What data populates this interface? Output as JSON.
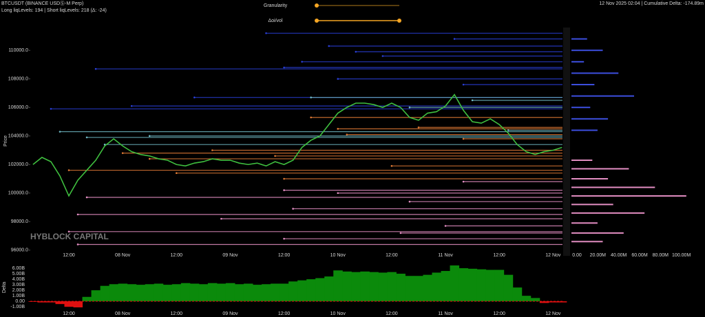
{
  "header": {
    "symbol": "BTCUSDT (BINANCE USDⓈ-M Perp)",
    "levels_info": "Long liqLevels: 194 | Short liqLevels: 218 (Δ: -24)",
    "status": "12 Nov 2025 02:04 | Cumulative Delta: -174.89m",
    "controls": [
      "Granularity",
      "Δoi/vol"
    ],
    "watermark": "HYBLOCK CAPITAL"
  },
  "chart_data": [
    {
      "type": "line",
      "y_label": "Price",
      "color": "#3fbf3f",
      "x": [
        4,
        6,
        8,
        10,
        12,
        14,
        16,
        18,
        20,
        22,
        24,
        26,
        28,
        30,
        32,
        34,
        36,
        38,
        40,
        42,
        44,
        46,
        48,
        50,
        52,
        54,
        56,
        58,
        60,
        62,
        64,
        66,
        68,
        70,
        72,
        74,
        76,
        78,
        80,
        82,
        84,
        86,
        88,
        90,
        92,
        94,
        96,
        98,
        100,
        102,
        104,
        106,
        108,
        110,
        112,
        114,
        116,
        118,
        120,
        122
      ],
      "values": [
        102000,
        102500,
        102200,
        101200,
        99800,
        100900,
        101600,
        102300,
        103300,
        103800,
        103300,
        102900,
        102700,
        102600,
        102400,
        102300,
        102000,
        101900,
        102100,
        102200,
        102400,
        102300,
        102300,
        102100,
        102000,
        102100,
        101900,
        102200,
        102000,
        102300,
        103200,
        103700,
        104000,
        104800,
        105600,
        106000,
        106300,
        106300,
        106200,
        106000,
        106300,
        106000,
        105300,
        105100,
        105600,
        105700,
        106100,
        106900,
        105800,
        105000,
        104900,
        105200,
        104800,
        104200,
        103400,
        102900,
        102700,
        102900,
        103000,
        103200
      ],
      "levels": [
        {
          "color": "#2a3fd6",
          "start": [
            56,
            70,
            76,
            98,
            82,
            64,
            60,
            18,
            72,
            100,
            40,
            8,
            26
          ],
          "price": [
            111200,
            110300,
            109900,
            110800,
            109600,
            109200,
            108800,
            108700,
            108000,
            107600,
            106700,
            105900,
            106100
          ]
        },
        {
          "color": "#6fb8c4",
          "start": [
            10,
            16,
            30,
            66,
            88,
            102,
            110,
            20
          ],
          "price": [
            104300,
            103900,
            104000,
            106700,
            106000,
            106500,
            104400,
            103400
          ]
        },
        {
          "color": "#e07a35",
          "start": [
            66,
            90,
            72,
            100,
            44,
            24,
            58,
            30,
            84,
            12,
            36,
            60,
            74
          ],
          "price": [
            105300,
            104600,
            104500,
            103800,
            103000,
            102800,
            102600,
            102400,
            101900,
            101600,
            101400,
            101000,
            104100
          ]
        },
        {
          "color": "#e58fc4",
          "start": [
            100,
            60,
            72,
            16,
            88,
            62,
            14,
            46,
            96,
            12,
            60,
            14,
            86
          ],
          "price": [
            100800,
            100200,
            100000,
            99700,
            99400,
            98900,
            98500,
            98200,
            97700,
            97300,
            96800,
            96400,
            97200
          ]
        }
      ],
      "xlim": [
        3.4,
        122.1
      ],
      "ylim": [
        95700,
        111600
      ],
      "xticks": [
        {
          "value": 12,
          "label": "12:00"
        },
        {
          "value": 24,
          "label": "08 Nov"
        },
        {
          "value": 36,
          "label": "12:00"
        },
        {
          "value": 48,
          "label": "09 Nov"
        },
        {
          "value": 60,
          "label": "12:00"
        },
        {
          "value": 72,
          "label": "10 Nov"
        },
        {
          "value": 84,
          "label": "12:00"
        },
        {
          "value": 96,
          "label": "11 Nov"
        },
        {
          "value": 108,
          "label": "12:00"
        },
        {
          "value": 120,
          "label": "12 Nov"
        }
      ],
      "yticks": [
        {
          "value": 96000,
          "label": "96000.0"
        },
        {
          "value": 98000,
          "label": "98000.0"
        },
        {
          "value": 100000,
          "label": "100000.0"
        },
        {
          "value": 102000,
          "label": "102000.0"
        },
        {
          "value": 104000,
          "label": "104000.0"
        },
        {
          "value": 106000,
          "label": "106000.0"
        },
        {
          "value": 108000,
          "label": "108000.0"
        },
        {
          "value": 110000,
          "label": "110000.0"
        }
      ]
    },
    {
      "type": "hbar",
      "xlim": [
        0,
        120
      ],
      "xticks": [
        {
          "value": 0,
          "label": "0.00"
        },
        {
          "value": 20,
          "label": "20.00M"
        },
        {
          "value": 40,
          "label": "40.00M"
        },
        {
          "value": 60,
          "label": "60.00M"
        },
        {
          "value": 80,
          "label": "80.00M"
        },
        {
          "value": 100,
          "label": "100.00M"
        }
      ],
      "series": [
        {
          "color": "#3d4fe0",
          "price": [
            110800,
            110000,
            109200,
            108400,
            107600,
            106800,
            106000,
            105200,
            104400
          ],
          "values": [
            15,
            30,
            12,
            45,
            22,
            60,
            18,
            35,
            25
          ]
        },
        {
          "color": "#e58fc4",
          "price": [
            102300,
            101700,
            101000,
            100400,
            99800,
            99200,
            98600,
            97900,
            97200,
            96600
          ],
          "values": [
            20,
            55,
            35,
            80,
            110,
            40,
            70,
            25,
            50,
            30
          ]
        }
      ]
    },
    {
      "type": "bar",
      "y_label": "Delta",
      "positive_color": "#0b8a0b",
      "negative_color": "#e01010",
      "x": [
        4,
        6,
        8,
        10,
        12,
        14,
        16,
        18,
        20,
        22,
        24,
        26,
        28,
        30,
        32,
        34,
        36,
        38,
        40,
        42,
        44,
        46,
        48,
        50,
        52,
        54,
        56,
        58,
        60,
        62,
        64,
        66,
        68,
        70,
        72,
        74,
        76,
        78,
        80,
        82,
        84,
        86,
        88,
        90,
        92,
        94,
        96,
        98,
        100,
        102,
        104,
        106,
        108,
        110,
        112,
        114,
        116,
        118,
        120,
        122
      ],
      "values": [
        -0.1,
        -0.2,
        -0.2,
        -0.5,
        -1.0,
        -1.1,
        0.8,
        2.0,
        2.8,
        3.1,
        3.2,
        3.1,
        3.0,
        3.1,
        3.2,
        3.0,
        3.1,
        3.3,
        3.2,
        3.1,
        3.3,
        3.2,
        3.3,
        3.1,
        3.2,
        3.0,
        3.1,
        3.2,
        3.2,
        3.6,
        3.8,
        4.0,
        4.2,
        4.5,
        5.6,
        5.4,
        5.3,
        5.4,
        5.3,
        5.2,
        5.3,
        5.0,
        4.6,
        4.6,
        4.8,
        5.2,
        5.5,
        6.5,
        6.0,
        5.9,
        5.8,
        5.7,
        5.7,
        4.8,
        2.5,
        1.0,
        0.6,
        -0.3,
        -0.2,
        -0.2
      ],
      "ylim": [
        -1.6,
        7.0
      ],
      "yticks": [
        {
          "value": 6,
          "label": "6.00B"
        },
        {
          "value": 5,
          "label": "5.00B"
        },
        {
          "value": 4,
          "label": "4.00B"
        },
        {
          "value": 3,
          "label": "3.00B"
        },
        {
          "value": 2,
          "label": "2.00B"
        },
        {
          "value": 1,
          "label": "1.00B"
        },
        {
          "value": 0,
          "label": "0.00"
        },
        {
          "value": -1,
          "label": "-1.00B"
        }
      ]
    }
  ]
}
